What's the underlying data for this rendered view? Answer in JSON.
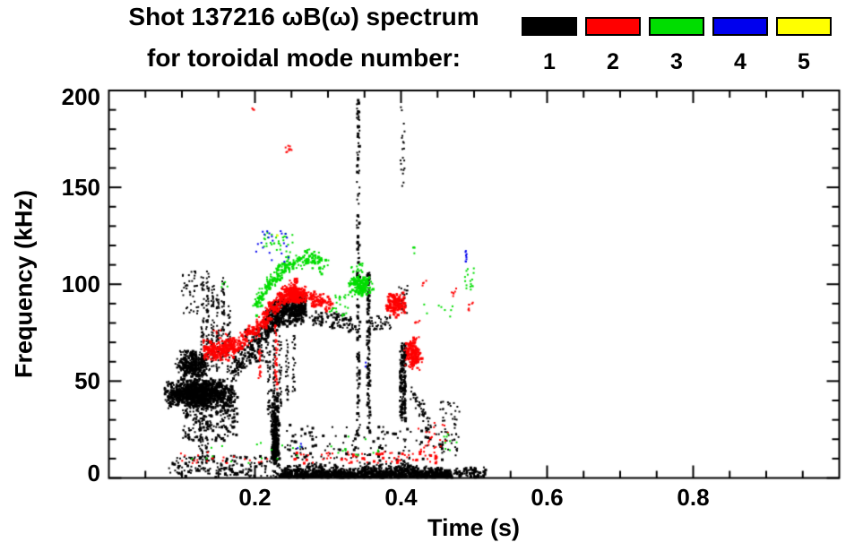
{
  "title": {
    "line1": "Shot 137216 ωB(ω) spectrum",
    "line2": "for toroidal mode number:"
  },
  "axes": {
    "xlabel": "Time (s)",
    "ylabel": "Frequency (kHz)"
  },
  "legend": {
    "items": [
      {
        "label": "1",
        "color": "#000000"
      },
      {
        "label": "2",
        "color": "#ff0000"
      },
      {
        "label": "3",
        "color": "#00dd00"
      },
      {
        "label": "4",
        "color": "#0000ee"
      },
      {
        "label": "5",
        "color": "#ffff00"
      }
    ]
  },
  "chart_data": {
    "type": "scatter",
    "title": "Shot 137216 ωB(ω) spectrum for toroidal mode number: 1–5",
    "xlabel": "Time (s)",
    "ylabel": "Frequency (kHz)",
    "xlim": [
      0,
      1.0
    ],
    "ylim": [
      0,
      200
    ],
    "grid": false,
    "legend_position": "top-right",
    "xticks": {
      "major": [
        0.2,
        0.4,
        0.6,
        0.8
      ],
      "labels": [
        "0.2",
        "0.4",
        "0.6",
        "0.8"
      ],
      "minor_step": 0.05
    },
    "yticks": {
      "major": [
        0,
        50,
        100,
        150,
        200
      ],
      "labels": [
        "0",
        "50",
        "100",
        "150",
        "200"
      ],
      "minor_step": 10
    },
    "series": [
      {
        "name": "n=1",
        "color": "#000000",
        "clusters": [
          {
            "type": "blob",
            "t": [
              0.072,
              0.175
            ],
            "f": [
              36,
              52
            ],
            "n": 1200,
            "dist": "center"
          },
          {
            "type": "blob",
            "t": [
              0.088,
              0.138
            ],
            "f": [
              50,
              67
            ],
            "n": 320,
            "dist": "center"
          },
          {
            "type": "blob",
            "t": [
              0.1,
              0.175
            ],
            "f": [
              20,
              38
            ],
            "n": 170
          },
          {
            "type": "vline",
            "t": 0.127,
            "jt": 0.002,
            "f": [
              55,
              105
            ],
            "n": 55
          },
          {
            "type": "vline",
            "t": 0.134,
            "jt": 0.002,
            "f": [
              60,
              108
            ],
            "n": 55
          },
          {
            "type": "vline",
            "t": 0.141,
            "jt": 0.002,
            "f": [
              58,
              100
            ],
            "n": 50
          },
          {
            "type": "vline",
            "t": 0.148,
            "jt": 0.002,
            "f": [
              55,
              95
            ],
            "n": 45
          },
          {
            "type": "vline",
            "t": 0.155,
            "jt": 0.002,
            "f": [
              58,
              104
            ],
            "n": 50
          },
          {
            "type": "vline",
            "t": 0.163,
            "jt": 0.002,
            "f": [
              55,
              90
            ],
            "n": 40
          },
          {
            "type": "vline",
            "t": 0.125,
            "jt": 0.003,
            "f": [
              5,
              32
            ],
            "n": 45
          },
          {
            "type": "vline",
            "t": 0.133,
            "jt": 0.002,
            "f": [
              8,
              30
            ],
            "n": 30
          },
          {
            "type": "blob",
            "t": [
              0.098,
              0.122
            ],
            "f": [
              85,
              108
            ],
            "n": 40
          },
          {
            "type": "band",
            "path": [
              [
                0.165,
                55
              ],
              [
                0.21,
                74
              ]
            ],
            "w": 8,
            "n": 130
          },
          {
            "type": "blob",
            "t": [
              0.185,
              0.215
            ],
            "f": [
              60,
              78
            ],
            "n": 70
          },
          {
            "type": "band",
            "path": [
              [
                0.212,
                80
              ],
              [
                0.232,
                86
              ],
              [
                0.252,
                88
              ],
              [
                0.268,
                88
              ]
            ],
            "w": 9,
            "n": 600
          },
          {
            "type": "vline",
            "t": 0.218,
            "jt": 0.002,
            "f": [
              32,
              75
            ],
            "n": 40
          },
          {
            "type": "vline",
            "t": 0.225,
            "jt": 0.002,
            "f": [
              28,
              72
            ],
            "n": 40
          },
          {
            "type": "vline",
            "t": 0.233,
            "jt": 0.002,
            "f": [
              35,
              74
            ],
            "n": 35
          },
          {
            "type": "vline",
            "t": 0.243,
            "jt": 0.002,
            "f": [
              40,
              72
            ],
            "n": 30
          },
          {
            "type": "vline",
            "t": 0.252,
            "jt": 0.002,
            "f": [
              45,
              75
            ],
            "n": 25
          },
          {
            "type": "blob",
            "t": [
              0.22,
              0.233
            ],
            "f": [
              5,
              48
            ],
            "n": 200,
            "dist": "center"
          },
          {
            "type": "blob",
            "t": [
              0.221,
              0.231
            ],
            "f": [
              6,
              26
            ],
            "n": 140,
            "dist": "center"
          },
          {
            "type": "band",
            "path": [
              [
                0.275,
                84
              ],
              [
                0.335,
                80
              ]
            ],
            "w": 5,
            "n": 90
          },
          {
            "type": "blob",
            "t": [
              0.355,
              0.385
            ],
            "f": [
              77,
              84
            ],
            "n": 45
          },
          {
            "type": "vline",
            "t": 0.34,
            "jt": 0.002,
            "f": [
              22,
              196
            ],
            "n": 150
          },
          {
            "type": "vline",
            "t": 0.354,
            "jt": 0.002,
            "f": [
              24,
              108
            ],
            "n": 110
          },
          {
            "type": "vline",
            "t": 0.401,
            "jt": 0.004,
            "f": [
              30,
              70
            ],
            "n": 180
          },
          {
            "type": "blob",
            "t": [
              0.396,
              0.408
            ],
            "f": [
              85,
              100
            ],
            "n": 25
          },
          {
            "type": "vline",
            "t": 0.401,
            "jt": 0.003,
            "f": [
              148,
              192
            ],
            "n": 20
          },
          {
            "type": "noise",
            "t": [
              0.233,
              0.468
            ],
            "env": [
              [
                0.233,
                6
              ],
              [
                0.25,
                8
              ],
              [
                0.28,
                9
              ],
              [
                0.31,
                8
              ],
              [
                0.33,
                5
              ],
              [
                0.35,
                8
              ],
              [
                0.38,
                8
              ],
              [
                0.4,
                10
              ],
              [
                0.42,
                7
              ],
              [
                0.445,
                6
              ],
              [
                0.468,
                4
              ]
            ],
            "n": 1800
          },
          {
            "type": "blob",
            "t": [
              0.468,
              0.515
            ],
            "f": [
              0.5,
              6
            ],
            "n": 80
          },
          {
            "type": "blob",
            "t": [
              0.08,
              0.233
            ],
            "f": [
              1,
              12
            ],
            "n": 170
          },
          {
            "type": "blob",
            "t": [
              0.24,
              0.46
            ],
            "f": [
              10,
              28
            ],
            "n": 140
          },
          {
            "type": "band",
            "path": [
              [
                0.413,
                44
              ],
              [
                0.44,
                28
              ]
            ],
            "w": 6,
            "n": 55
          },
          {
            "type": "blob",
            "t": [
              0.452,
              0.48
            ],
            "f": [
              12,
              40
            ],
            "n": 50
          }
        ]
      },
      {
        "name": "n=2",
        "color": "#ff0000",
        "clusters": [
          {
            "type": "band",
            "path": [
              [
                0.128,
                66
              ],
              [
                0.15,
                66
              ],
              [
                0.17,
                68
              ]
            ],
            "w": 6,
            "n": 240
          },
          {
            "type": "band",
            "path": [
              [
                0.17,
                68
              ],
              [
                0.205,
                79
              ],
              [
                0.235,
                94
              ],
              [
                0.258,
                99
              ]
            ],
            "w": 6,
            "n": 340
          },
          {
            "type": "blob",
            "t": [
              0.237,
              0.272
            ],
            "f": [
              90,
              100
            ],
            "n": 230,
            "dist": "center"
          },
          {
            "type": "band",
            "path": [
              [
                0.272,
                94
              ],
              [
                0.305,
                90
              ]
            ],
            "w": 5,
            "n": 80
          },
          {
            "type": "vline",
            "t": 0.228,
            "jt": 0.002,
            "f": [
              45,
              80
            ],
            "n": 40
          },
          {
            "type": "vline",
            "t": 0.2055,
            "jt": 0.002,
            "f": [
              50,
              68
            ],
            "n": 20
          },
          {
            "type": "blob",
            "t": [
              0.24,
              0.249
            ],
            "f": [
              168,
              172
            ],
            "n": 9
          },
          {
            "type": "blob",
            "t": [
              0.195,
              0.198
            ],
            "f": [
              190,
              193
            ],
            "n": 3
          },
          {
            "type": "blob",
            "t": [
              0.376,
              0.406
            ],
            "f": [
              83,
              97
            ],
            "n": 170,
            "dist": "center"
          },
          {
            "type": "blob",
            "t": [
              0.402,
              0.428
            ],
            "f": [
              56,
              74
            ],
            "n": 170,
            "dist": "center"
          },
          {
            "type": "blob",
            "t": [
              0.468,
              0.476
            ],
            "f": [
              94,
              99
            ],
            "n": 6
          },
          {
            "type": "blob",
            "t": [
              0.491,
              0.498
            ],
            "f": [
              86,
              92
            ],
            "n": 7
          },
          {
            "type": "blob",
            "t": [
              0.417,
              0.425
            ],
            "f": [
              79,
              84
            ],
            "n": 5
          },
          {
            "type": "blob",
            "t": [
              0.428,
              0.434
            ],
            "f": [
              99,
              104
            ],
            "n": 4
          },
          {
            "type": "blob",
            "t": [
              0.09,
              0.23
            ],
            "f": [
              8,
              14
            ],
            "n": 22
          },
          {
            "type": "blob",
            "t": [
              0.24,
              0.45
            ],
            "f": [
              8,
              14
            ],
            "n": 75
          },
          {
            "type": "blob",
            "t": [
              0.42,
              0.465
            ],
            "f": [
              14,
              30
            ],
            "n": 25
          },
          {
            "type": "blob",
            "t": [
              0.14,
              0.165
            ],
            "f": [
              71,
              77
            ],
            "n": 10
          }
        ]
      },
      {
        "name": "n=3",
        "color": "#00dd00",
        "clusters": [
          {
            "type": "band",
            "path": [
              [
                0.197,
                89
              ],
              [
                0.218,
                101
              ],
              [
                0.242,
                110
              ],
              [
                0.268,
                114
              ],
              [
                0.298,
                110
              ]
            ],
            "w": 6,
            "n": 240
          },
          {
            "type": "blob",
            "t": [
              0.21,
              0.252
            ],
            "f": [
              117,
              128
            ],
            "n": 32
          },
          {
            "type": "blob",
            "t": [
              0.325,
              0.362
            ],
            "f": [
              94,
              106
            ],
            "n": 160,
            "dist": "center"
          },
          {
            "type": "blob",
            "t": [
              0.33,
              0.352
            ],
            "f": [
              106,
              112
            ],
            "n": 18
          },
          {
            "type": "blob",
            "t": [
              0.3,
              0.327
            ],
            "f": [
              84,
              95
            ],
            "n": 25
          },
          {
            "type": "blob",
            "t": [
              0.486,
              0.5
            ],
            "f": [
              97,
              110
            ],
            "n": 16
          },
          {
            "type": "blob",
            "t": [
              0.414,
              0.42
            ],
            "f": [
              116,
              120
            ],
            "n": 4
          },
          {
            "type": "blob",
            "t": [
              0.43,
              0.47
            ],
            "f": [
              80,
              90
            ],
            "n": 8
          },
          {
            "type": "blob",
            "t": [
              0.11,
              0.27
            ],
            "f": [
              8,
              20
            ],
            "n": 16
          },
          {
            "type": "blob",
            "t": [
              0.3,
              0.37
            ],
            "f": [
              10,
              22
            ],
            "n": 12
          },
          {
            "type": "blob",
            "t": [
              0.455,
              0.475
            ],
            "f": [
              12,
              24
            ],
            "n": 8
          },
          {
            "type": "blob",
            "t": [
              0.153,
              0.162
            ],
            "f": [
              97,
              102
            ],
            "n": 4
          }
        ]
      },
      {
        "name": "n=4",
        "color": "#0000ee",
        "clusters": [
          {
            "type": "blob",
            "t": [
              0.2,
              0.246
            ],
            "f": [
              112,
              128
            ],
            "n": 22
          },
          {
            "type": "vline",
            "t": 0.488,
            "jt": 0.001,
            "f": [
              112,
              118
            ],
            "n": 8
          },
          {
            "type": "blob",
            "t": [
              0.255,
              0.263
            ],
            "f": [
              15,
              19
            ],
            "n": 3
          },
          {
            "type": "blob",
            "t": [
              0.35,
              0.356
            ],
            "f": [
              57,
              62
            ],
            "n": 2
          }
        ]
      },
      {
        "name": "n=5",
        "color": "#ffff00",
        "clusters": [
          {
            "type": "blob",
            "t": [
              0.226,
              0.231
            ],
            "f": [
              124,
              127
            ],
            "n": 2
          }
        ]
      }
    ]
  }
}
